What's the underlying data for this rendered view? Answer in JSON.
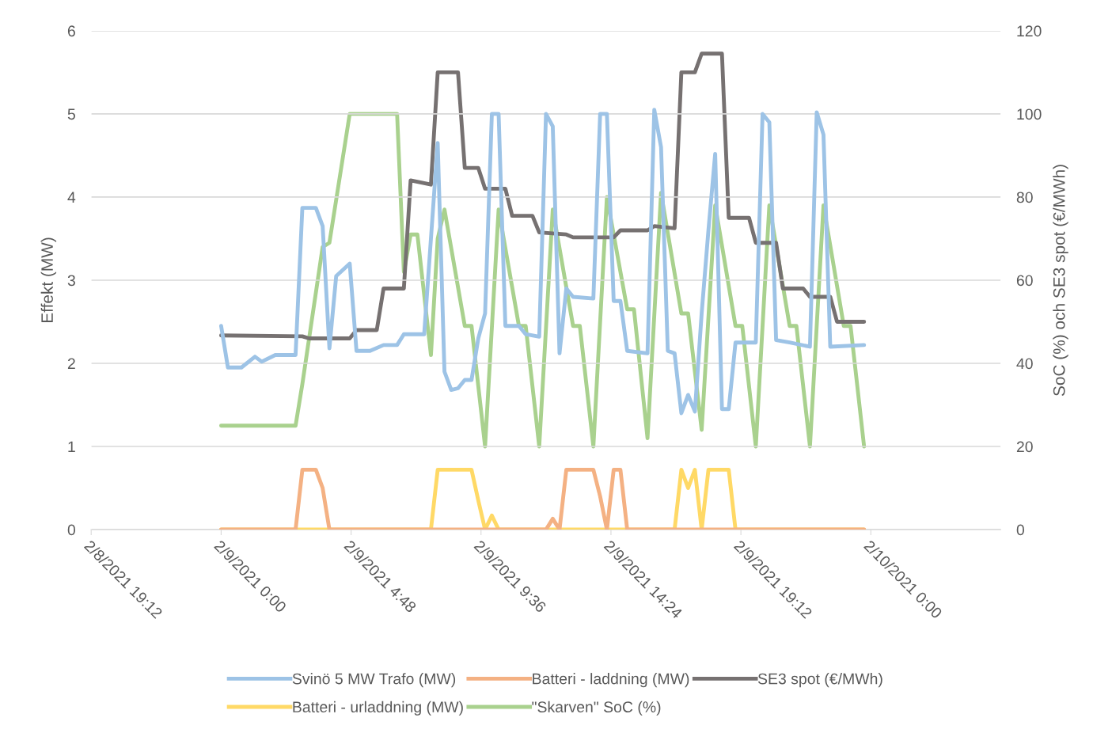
{
  "chart_data": {
    "type": "line",
    "ylabel": "Effekt (MW)",
    "y2label": "SoC (%) och SE3 spot (€/MWh)",
    "xlim": [
      "2021-02-08T19:12",
      "2021-02-10T04:48"
    ],
    "xticks": [
      {
        "value": "2021-02-08T19:12",
        "label": "2/8/2021 19:12"
      },
      {
        "value": "2021-02-09T00:00",
        "label": "2/9/2021 0:00"
      },
      {
        "value": "2021-02-09T04:48",
        "label": "2/9/2021 4:48"
      },
      {
        "value": "2021-02-09T09:36",
        "label": "2/9/2021 9:36"
      },
      {
        "value": "2021-02-09T14:24",
        "label": "2/9/2021 14:24"
      },
      {
        "value": "2021-02-09T19:12",
        "label": "2/9/2021 19:12"
      },
      {
        "value": "2021-02-10T00:00",
        "label": "2/10/2021 0:00"
      }
    ],
    "ylim": [
      0,
      6
    ],
    "yticks": [
      0,
      1,
      2,
      3,
      4,
      5,
      6
    ],
    "y2lim": [
      0,
      120
    ],
    "y2ticks": [
      0,
      20,
      40,
      60,
      80,
      100,
      120
    ],
    "grid": "y",
    "legend": "bottom",
    "marker": "none",
    "line_style": "solid",
    "series": [
      {
        "name": "Svinö 5 MW Trafo (MW)",
        "color": "#9dc3e6",
        "x": [
          "2021-02-09T00:00",
          "2021-02-09T00:15",
          "2021-02-09T00:45",
          "2021-02-09T01:15",
          "2021-02-09T01:30",
          "2021-02-09T02:00",
          "2021-02-09T02:45",
          "2021-02-09T03:00",
          "2021-02-09T03:30",
          "2021-02-09T03:45",
          "2021-02-09T04:00",
          "2021-02-09T04:15",
          "2021-02-09T04:45",
          "2021-02-09T05:00",
          "2021-02-09T05:30",
          "2021-02-09T06:00",
          "2021-02-09T06:30",
          "2021-02-09T06:45",
          "2021-02-09T07:30",
          "2021-02-09T08:00",
          "2021-02-09T08:15",
          "2021-02-09T08:30",
          "2021-02-09T08:45",
          "2021-02-09T09:00",
          "2021-02-09T09:15",
          "2021-02-09T09:30",
          "2021-02-09T09:45",
          "2021-02-09T10:00",
          "2021-02-09T10:15",
          "2021-02-09T10:30",
          "2021-02-09T11:00",
          "2021-02-09T11:15",
          "2021-02-09T11:45",
          "2021-02-09T12:00",
          "2021-02-09T12:15",
          "2021-02-09T12:30",
          "2021-02-09T12:45",
          "2021-02-09T13:00",
          "2021-02-09T13:45",
          "2021-02-09T14:00",
          "2021-02-09T14:15",
          "2021-02-09T14:30",
          "2021-02-09T14:45",
          "2021-02-09T15:00",
          "2021-02-09T15:45",
          "2021-02-09T16:00",
          "2021-02-09T16:15",
          "2021-02-09T16:30",
          "2021-02-09T16:45",
          "2021-02-09T17:00",
          "2021-02-09T17:15",
          "2021-02-09T17:30",
          "2021-02-09T17:45",
          "2021-02-09T18:00",
          "2021-02-09T18:15",
          "2021-02-09T18:30",
          "2021-02-09T18:45",
          "2021-02-09T19:00",
          "2021-02-09T19:45",
          "2021-02-09T20:00",
          "2021-02-09T20:15",
          "2021-02-09T20:30",
          "2021-02-09T21:00",
          "2021-02-09T21:45",
          "2021-02-09T22:00",
          "2021-02-09T22:15",
          "2021-02-09T22:30",
          "2021-02-09T23:45"
        ],
        "values": [
          2.45,
          1.95,
          1.95,
          2.08,
          2.02,
          2.1,
          2.1,
          3.87,
          3.87,
          3.65,
          2.18,
          3.05,
          3.2,
          2.15,
          2.15,
          2.22,
          2.22,
          2.35,
          2.35,
          4.65,
          1.9,
          1.68,
          1.7,
          1.8,
          1.8,
          2.3,
          2.6,
          5.0,
          5.0,
          2.45,
          2.45,
          2.35,
          2.32,
          5.0,
          4.85,
          2.12,
          2.9,
          2.8,
          2.78,
          5.0,
          5.0,
          2.75,
          2.75,
          2.15,
          2.12,
          5.05,
          4.6,
          2.15,
          2.12,
          1.4,
          1.62,
          1.42,
          2.6,
          3.6,
          4.52,
          1.45,
          1.45,
          2.25,
          2.25,
          5.0,
          4.9,
          2.28,
          2.25,
          2.2,
          5.02,
          4.75,
          2.2,
          2.22
        ]
      },
      {
        "name": "Batteri - urladdning (MW)",
        "color": "#ffd966",
        "x": [
          "2021-02-09T00:00",
          "2021-02-09T07:45",
          "2021-02-09T08:00",
          "2021-02-09T09:15",
          "2021-02-09T09:30",
          "2021-02-09T09:45",
          "2021-02-09T10:00",
          "2021-02-09T10:15",
          "2021-02-09T16:45",
          "2021-02-09T17:00",
          "2021-02-09T17:15",
          "2021-02-09T17:30",
          "2021-02-09T17:45",
          "2021-02-09T18:00",
          "2021-02-09T18:45",
          "2021-02-09T19:00",
          "2021-02-09T23:45"
        ],
        "values": [
          0,
          0,
          0.72,
          0.72,
          0.35,
          0,
          0.17,
          0,
          0,
          0.72,
          0.5,
          0.72,
          0,
          0.72,
          0.72,
          0,
          0
        ]
      },
      {
        "name": "Batteri - laddning (MW)",
        "color": "#f4b183",
        "x": [
          "2021-02-09T00:00",
          "2021-02-09T02:45",
          "2021-02-09T03:00",
          "2021-02-09T03:30",
          "2021-02-09T03:45",
          "2021-02-09T04:00",
          "2021-02-09T12:00",
          "2021-02-09T12:15",
          "2021-02-09T12:30",
          "2021-02-09T12:45",
          "2021-02-09T13:45",
          "2021-02-09T14:00",
          "2021-02-09T14:15",
          "2021-02-09T14:30",
          "2021-02-09T14:45",
          "2021-02-09T15:00",
          "2021-02-09T23:45"
        ],
        "values": [
          0,
          0,
          0.72,
          0.72,
          0.5,
          0,
          0,
          0.13,
          0,
          0.72,
          0.72,
          0.4,
          0,
          0.72,
          0.72,
          0,
          0
        ]
      },
      {
        "name": "\"Skarven\" SoC (%)",
        "color": "#a9d18e",
        "axis": "y2",
        "x": [
          "2021-02-09T00:00",
          "2021-02-09T02:45",
          "2021-02-09T03:00",
          "2021-02-09T03:45",
          "2021-02-09T04:00",
          "2021-02-09T04:45",
          "2021-02-09T06:30",
          "2021-02-09T06:45",
          "2021-02-09T07:00",
          "2021-02-09T07:15",
          "2021-02-09T07:45",
          "2021-02-09T08:00",
          "2021-02-09T08:15",
          "2021-02-09T09:00",
          "2021-02-09T09:15",
          "2021-02-09T09:45",
          "2021-02-09T10:15",
          "2021-02-09T11:00",
          "2021-02-09T11:15",
          "2021-02-09T11:45",
          "2021-02-09T12:15",
          "2021-02-09T13:00",
          "2021-02-09T13:15",
          "2021-02-09T13:45",
          "2021-02-09T14:15",
          "2021-02-09T15:00",
          "2021-02-09T15:15",
          "2021-02-09T15:45",
          "2021-02-09T16:15",
          "2021-02-09T17:00",
          "2021-02-09T17:15",
          "2021-02-09T17:45",
          "2021-02-09T18:15",
          "2021-02-09T19:00",
          "2021-02-09T19:15",
          "2021-02-09T19:45",
          "2021-02-09T20:15",
          "2021-02-09T21:00",
          "2021-02-09T21:15",
          "2021-02-09T21:45",
          "2021-02-09T22:15",
          "2021-02-09T23:00",
          "2021-02-09T23:15",
          "2021-02-09T23:45"
        ],
        "values": [
          25,
          25,
          35,
          68,
          69,
          100,
          100,
          62,
          71,
          71,
          42,
          70,
          77,
          49,
          49,
          20,
          77,
          49,
          49,
          20,
          77,
          49,
          49,
          20,
          80,
          53,
          53,
          22,
          81,
          52,
          52,
          24,
          78,
          49,
          49,
          20,
          78,
          49,
          49,
          20,
          78,
          49,
          49,
          20
        ]
      },
      {
        "name": "SE3 spot (€/MWh)",
        "color": "#767171",
        "axis": "y2",
        "x": [
          "2021-02-09T00:00",
          "2021-02-09T03:00",
          "2021-02-09T03:15",
          "2021-02-09T04:45",
          "2021-02-09T05:00",
          "2021-02-09T05:45",
          "2021-02-09T06:00",
          "2021-02-09T06:45",
          "2021-02-09T07:00",
          "2021-02-09T07:45",
          "2021-02-09T08:00",
          "2021-02-09T08:45",
          "2021-02-09T09:00",
          "2021-02-09T09:30",
          "2021-02-09T09:45",
          "2021-02-09T10:30",
          "2021-02-09T10:45",
          "2021-02-09T11:30",
          "2021-02-09T11:45",
          "2021-02-09T12:45",
          "2021-02-09T13:00",
          "2021-02-09T14:30",
          "2021-02-09T14:45",
          "2021-02-09T15:45",
          "2021-02-09T16:00",
          "2021-02-09T16:45",
          "2021-02-09T17:00",
          "2021-02-09T17:30",
          "2021-02-09T17:45",
          "2021-02-09T18:30",
          "2021-02-09T18:45",
          "2021-02-09T19:30",
          "2021-02-09T19:45",
          "2021-02-09T20:30",
          "2021-02-09T20:45",
          "2021-02-09T21:30",
          "2021-02-09T21:45",
          "2021-02-09T22:30",
          "2021-02-09T22:45",
          "2021-02-09T23:45"
        ],
        "values": [
          46.7,
          46.5,
          46,
          46,
          48,
          48,
          58,
          58,
          84,
          83,
          110,
          110,
          87,
          87,
          82,
          82,
          75.5,
          75.5,
          71.5,
          71,
          70.3,
          70.3,
          72,
          72,
          73,
          72.5,
          110,
          110,
          114.5,
          114.5,
          75,
          75,
          69,
          69,
          58,
          58,
          56,
          56,
          50,
          50
        ]
      }
    ]
  }
}
